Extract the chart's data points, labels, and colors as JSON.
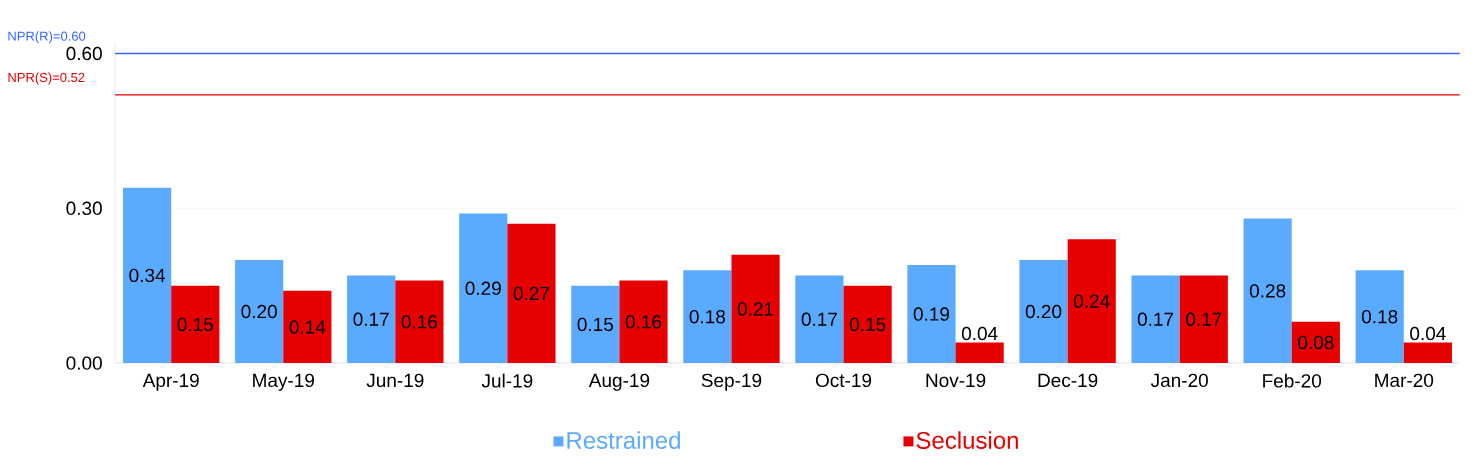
{
  "chart_data": {
    "type": "bar",
    "categories": [
      "Apr-19",
      "May-19",
      "Jun-19",
      "Jul-19",
      "Aug-19",
      "Sep-19",
      "Oct-19",
      "Nov-19",
      "Dec-19",
      "Jan-20",
      "Feb-20",
      "Mar-20"
    ],
    "series": [
      {
        "name": "Restrained",
        "color": "#5aabff",
        "values": [
          0.34,
          0.2,
          0.17,
          0.29,
          0.15,
          0.18,
          0.17,
          0.19,
          0.2,
          0.17,
          0.28,
          0.18
        ],
        "value_labels": [
          "0.34",
          "0.20",
          "0.17",
          "0.29",
          "0.15",
          "0.18",
          "0.17",
          "0.19",
          "0.20",
          "0.17",
          "0.28",
          "0.18"
        ]
      },
      {
        "name": "Seclusion",
        "color": "#e60000",
        "values": [
          0.15,
          0.14,
          0.16,
          0.27,
          0.16,
          0.21,
          0.15,
          0.04,
          0.24,
          0.17,
          0.08,
          0.04
        ],
        "value_labels": [
          "0.15",
          "0.14",
          "0.16",
          "0.27",
          "0.16",
          "0.21",
          "0.15",
          "0.04",
          "0.24",
          "0.17",
          "0.08",
          "0.04"
        ]
      }
    ],
    "ylim": [
      0,
      0.62
    ],
    "yticks": [
      {
        "value": 0,
        "label": "0.00"
      },
      {
        "value": 0.3,
        "label": "0.30"
      },
      {
        "value": 0.6,
        "label": "0.60"
      }
    ],
    "ref_lines": [
      {
        "axis": "y",
        "value": 0.6,
        "label": "NPR(R)=0.60",
        "color": "#3366ff"
      },
      {
        "axis": "y",
        "value": 0.52,
        "label": "NPR(S)=0.52",
        "color": "#e60000"
      }
    ],
    "grid": "y",
    "legend": "bottom"
  }
}
